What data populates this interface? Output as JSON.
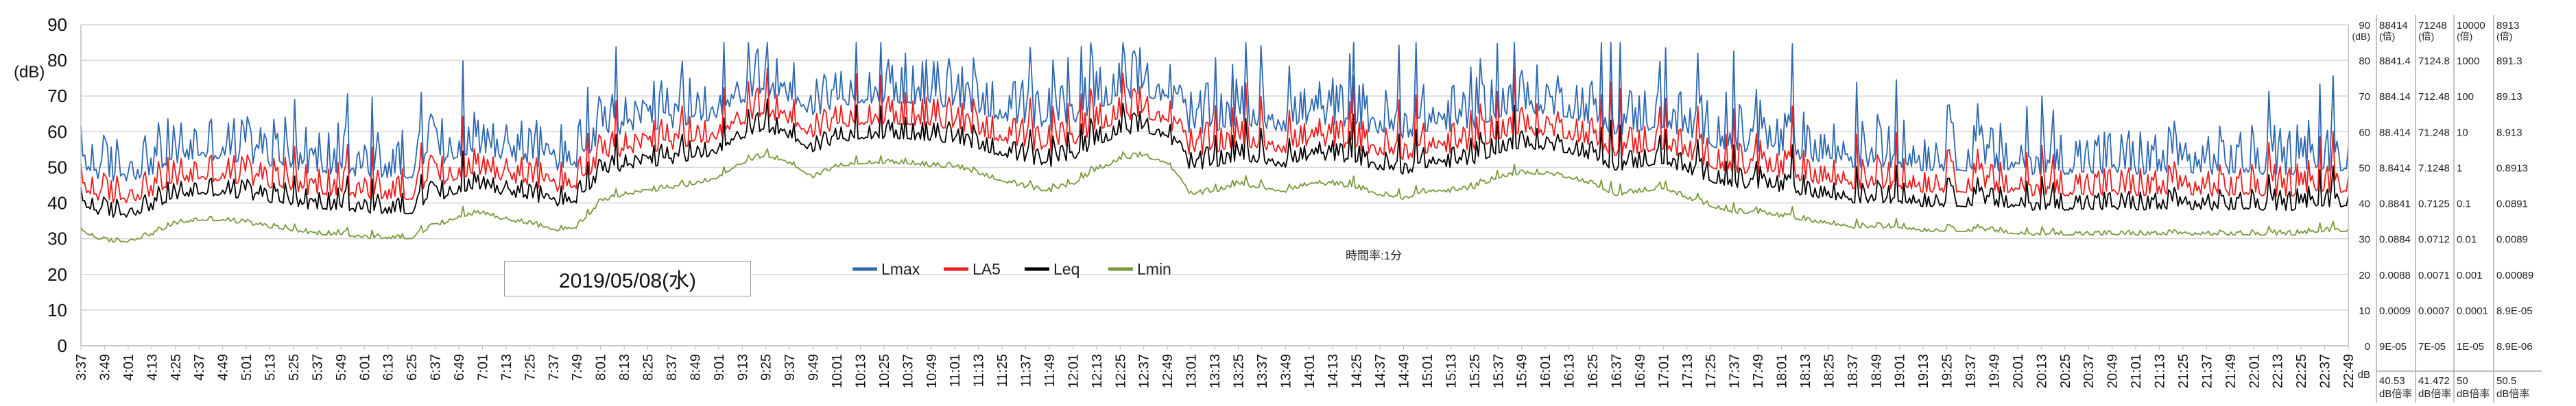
{
  "chart_data": {
    "type": "line",
    "ylabel": "(dB)",
    "ylim": [
      0,
      90
    ],
    "y_ticks": [
      "0",
      "10",
      "20",
      "30",
      "40",
      "50",
      "60",
      "70",
      "80",
      "90"
    ],
    "grid": true,
    "legend_position": "center",
    "date_label": "2019/05/08(水)",
    "interval_note": "時間率:1分",
    "x_tick_labels": [
      "3:37",
      "3:49",
      "4:01",
      "4:13",
      "4:25",
      "4:37",
      "4:49",
      "5:01",
      "5:13",
      "5:25",
      "5:37",
      "5:49",
      "6:01",
      "6:13",
      "6:25",
      "6:37",
      "6:49",
      "7:01",
      "7:13",
      "7:25",
      "7:37",
      "7:49",
      "8:01",
      "8:13",
      "8:25",
      "8:37",
      "8:49",
      "9:01",
      "9:13",
      "9:25",
      "9:37",
      "9:49",
      "10:01",
      "10:13",
      "10:25",
      "10:37",
      "10:49",
      "11:01",
      "11:13",
      "11:25",
      "11:37",
      "11:49",
      "12:01",
      "12:13",
      "12:25",
      "12:37",
      "12:49",
      "13:01",
      "13:13",
      "13:25",
      "13:37",
      "13:49",
      "14:01",
      "14:13",
      "14:25",
      "14:37",
      "14:49",
      "15:01",
      "15:13",
      "15:25",
      "15:37",
      "15:49",
      "16:01",
      "16:13",
      "16:25",
      "16:37",
      "16:49",
      "17:01",
      "17:13",
      "17:25",
      "17:37",
      "17:49",
      "18:01",
      "18:13",
      "18:25",
      "18:37",
      "18:49",
      "19:01",
      "19:13",
      "19:25",
      "19:37",
      "19:49",
      "20:01",
      "20:13",
      "20:25",
      "20:37",
      "20:49",
      "21:01",
      "21:13",
      "21:25",
      "21:37",
      "21:49",
      "22:01",
      "22:13",
      "22:25",
      "22:37",
      "22:49"
    ],
    "envelope": [
      37,
      34,
      34,
      36,
      39,
      40,
      40,
      39,
      38,
      37,
      36,
      36,
      35,
      35,
      35,
      38,
      41,
      42,
      40,
      39,
      37,
      38,
      45,
      47,
      48,
      49,
      50,
      52,
      56,
      58,
      56,
      52,
      55,
      56,
      56,
      56,
      55,
      55,
      53,
      51,
      49,
      48,
      50,
      54,
      57,
      58,
      56,
      47,
      48,
      50,
      49,
      48,
      50,
      50,
      49,
      47,
      46,
      48,
      48,
      49,
      52,
      53,
      53,
      52,
      50,
      47,
      48,
      49,
      46,
      44,
      42,
      42,
      41,
      40,
      39,
      38,
      38,
      38,
      37,
      37,
      37,
      37,
      36,
      36,
      36,
      36,
      36,
      36,
      36,
      36,
      36,
      36,
      36,
      36,
      36,
      37,
      37
    ],
    "series": [
      {
        "name": "Lmax",
        "color": "#2e68b0",
        "offset": 12,
        "amp": 14
      },
      {
        "name": "LA5",
        "color": "#ee1c1c",
        "offset": 6,
        "amp": 9
      },
      {
        "name": "Leq",
        "color": "#000000",
        "offset": 2,
        "amp": 6
      },
      {
        "name": "Lmin",
        "color": "#7a9a3a",
        "offset": -5,
        "amp": 1.5
      }
    ],
    "right_axes": [
      {
        "ticks": [
          "90",
          "80",
          "70",
          "60",
          "50",
          "40",
          "30",
          "20",
          "10",
          "0"
        ],
        "top_unit": "(dB)",
        "bottom_unit": "dB"
      },
      {
        "ticks": [
          "88414",
          "8841.4",
          "884.14",
          "88.414",
          "8.8414",
          "0.8841",
          "0.0884",
          "0.0088",
          "0.0009",
          "9E-05"
        ],
        "top_unit": "(倍)",
        "foot_value": "40.53",
        "foot_unit": "dB倍率"
      },
      {
        "ticks": [
          "71248",
          "7124.8",
          "712.48",
          "71.248",
          "7.1248",
          "0.7125",
          "0.0712",
          "0.0071",
          "0.0007",
          "7E-05"
        ],
        "top_unit": "(倍)",
        "foot_value": "41.472",
        "foot_unit": "dB倍率"
      },
      {
        "ticks": [
          "10000",
          "1000",
          "100",
          "10",
          "1",
          "0.1",
          "0.01",
          "0.001",
          "0.0001",
          "1E-05"
        ],
        "top_unit": "(倍)",
        "foot_value": "50",
        "foot_unit": "dB倍率"
      },
      {
        "ticks": [
          "8913",
          "891.3",
          "89.13",
          "8.913",
          "0.8913",
          "0.0891",
          "0.0089",
          "0.00089",
          "8.9E-05",
          "8.9E-06"
        ],
        "top_unit": "(倍)",
        "foot_value": "50.5",
        "foot_unit": "dB倍率"
      }
    ]
  }
}
